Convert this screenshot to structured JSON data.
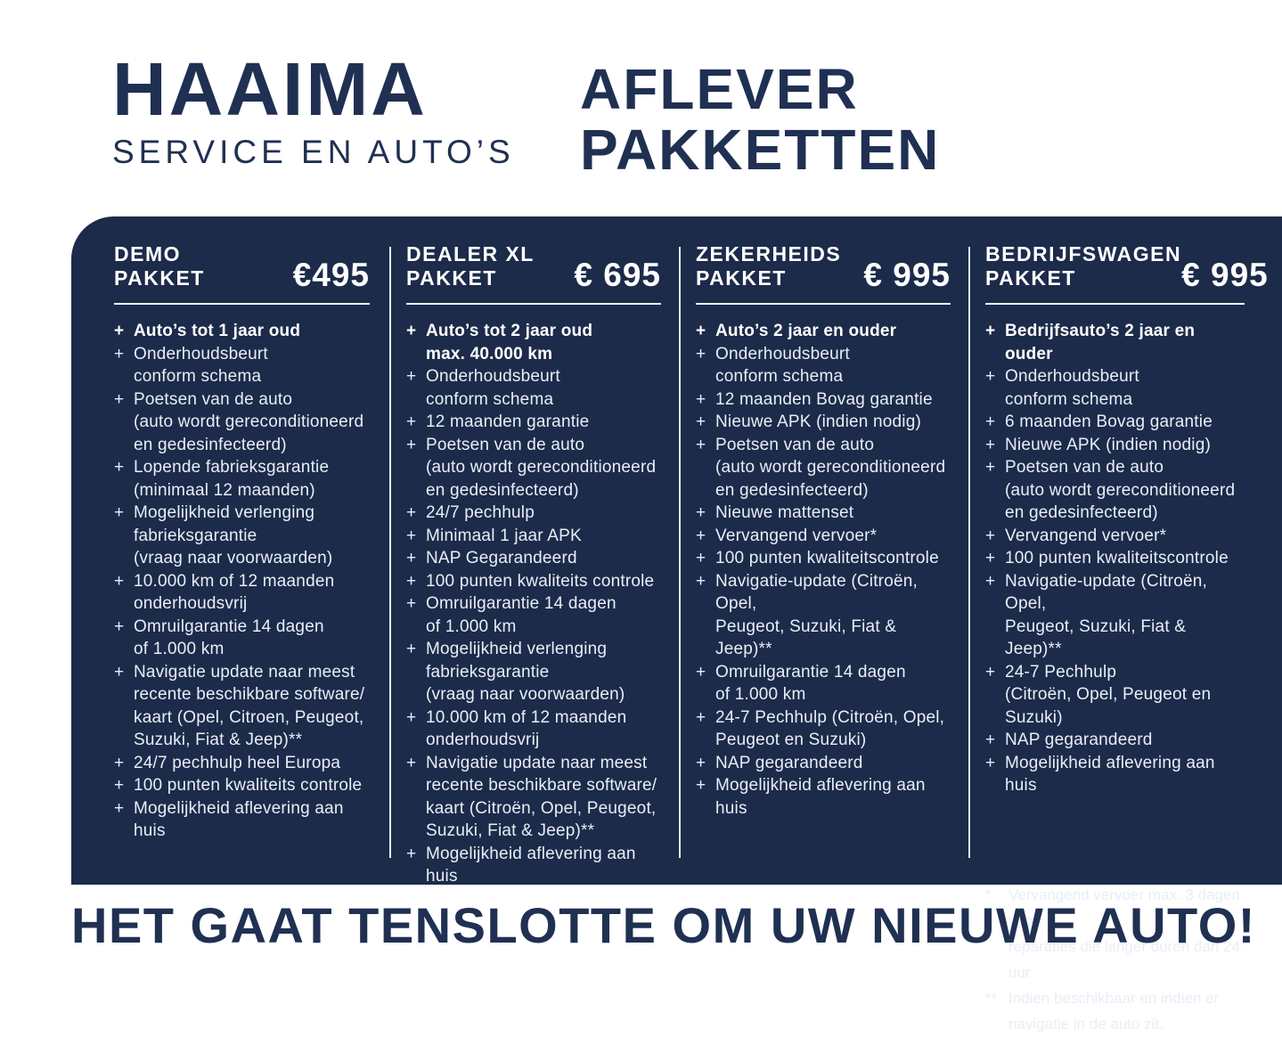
{
  "header": {
    "brand_name": "HAAIMA",
    "brand_subtitle": "SERVICE EN AUTO’S",
    "title_line1": "AFLEVER",
    "title_line2": "PAKKETTEN"
  },
  "colors": {
    "panel_navy": "#1c2b4a",
    "text_navy": "#203052",
    "text_light": "#e9eef6",
    "white": "#ffffff"
  },
  "packages": [
    {
      "title_line1": "DEMO",
      "title_line2": "PAKKET",
      "price": "€495",
      "items": [
        {
          "bold": true,
          "lines": [
            "Auto’s tot 1 jaar oud"
          ]
        },
        {
          "bold": false,
          "lines": [
            "Onderhoudsbeurt",
            "conform schema"
          ]
        },
        {
          "bold": false,
          "lines": [
            "Poetsen van de auto",
            "(auto wordt gereconditioneerd",
            "en gedesinfecteerd)"
          ]
        },
        {
          "bold": false,
          "lines": [
            "Lopende fabrieksgarantie",
            "(minimaal 12 maanden)"
          ]
        },
        {
          "bold": false,
          "lines": [
            "Mogelijkheid verlenging",
            "fabrieksgarantie",
            "(vraag naar voorwaarden)"
          ]
        },
        {
          "bold": false,
          "lines": [
            "10.000 km of 12 maanden",
            "onderhoudsvrij"
          ]
        },
        {
          "bold": false,
          "lines": [
            "Omruilgarantie 14 dagen",
            "of 1.000 km"
          ]
        },
        {
          "bold": false,
          "lines": [
            "Navigatie update naar meest",
            "recente beschikbare software/",
            "kaart (Opel, Citroen,  Peugeot,",
            "Suzuki, Fiat & Jeep)**"
          ]
        },
        {
          "bold": false,
          "lines": [
            "24/7 pechhulp heel Europa"
          ]
        },
        {
          "bold": false,
          "lines": [
            "100 punten kwaliteits controle"
          ]
        },
        {
          "bold": false,
          "lines": [
            "Mogelijkheid aflevering aan huis"
          ]
        }
      ]
    },
    {
      "title_line1": "DEALER XL",
      "title_line2": "PAKKET",
      "price": "€ 695",
      "items": [
        {
          "bold": true,
          "lines": [
            "Auto’s tot 2 jaar oud",
            "max. 40.000 km"
          ]
        },
        {
          "bold": false,
          "lines": [
            "Onderhoudsbeurt",
            "conform schema"
          ]
        },
        {
          "bold": false,
          "lines": [
            "12 maanden garantie"
          ]
        },
        {
          "bold": false,
          "lines": [
            "Poetsen van de auto",
            "(auto wordt gereconditioneerd",
            "en gedesinfecteerd)"
          ]
        },
        {
          "bold": false,
          "lines": [
            "24/7 pechhulp"
          ]
        },
        {
          "bold": false,
          "lines": [
            "Minimaal 1 jaar APK"
          ]
        },
        {
          "bold": false,
          "lines": [
            "NAP Gegarandeerd"
          ]
        },
        {
          "bold": false,
          "lines": [
            "100 punten kwaliteits controle"
          ]
        },
        {
          "bold": false,
          "lines": [
            "Omruilgarantie 14 dagen",
            "of 1.000 km"
          ]
        },
        {
          "bold": false,
          "lines": [
            "Mogelijkheid verlenging",
            "fabrieksgarantie",
            "(vraag naar voorwaarden)"
          ]
        },
        {
          "bold": false,
          "lines": [
            "10.000 km of 12 maanden",
            "onderhoudsvrij"
          ]
        },
        {
          "bold": false,
          "lines": [
            "Navigatie update naar meest",
            "recente beschikbare software/",
            "kaart (Citroën, Opel, Peugeot,",
            "Suzuki, Fiat & Jeep)**"
          ]
        },
        {
          "bold": false,
          "lines": [
            "Mogelijkheid aflevering aan huis"
          ]
        }
      ]
    },
    {
      "title_line1": "ZEKERHEIDS",
      "title_line2": "PAKKET",
      "price": "€ 995",
      "items": [
        {
          "bold": true,
          "lines": [
            "Auto’s 2 jaar en ouder"
          ]
        },
        {
          "bold": false,
          "lines": [
            "Onderhoudsbeurt",
            "conform schema"
          ]
        },
        {
          "bold": false,
          "lines": [
            "12 maanden Bovag garantie"
          ]
        },
        {
          "bold": false,
          "lines": [
            "Nieuwe APK (indien nodig)"
          ]
        },
        {
          "bold": false,
          "lines": [
            "Poetsen van de auto",
            "(auto wordt gereconditioneerd",
            "en gedesinfecteerd)"
          ]
        },
        {
          "bold": false,
          "lines": [
            "Nieuwe mattenset"
          ]
        },
        {
          "bold": false,
          "lines": [
            "Vervangend vervoer*"
          ]
        },
        {
          "bold": false,
          "lines": [
            "100 punten kwaliteitscontrole"
          ]
        },
        {
          "bold": false,
          "lines": [
            "Navigatie-update (Citroën, Opel,",
            "Peugeot, Suzuki, Fiat & Jeep)**"
          ]
        },
        {
          "bold": false,
          "lines": [
            "Omruilgarantie 14 dagen",
            "of 1.000 km"
          ]
        },
        {
          "bold": false,
          "lines": [
            "24-7 Pechhulp (Citroën, Opel,",
            "Peugeot en Suzuki)"
          ]
        },
        {
          "bold": false,
          "lines": [
            "NAP gegarandeerd"
          ]
        },
        {
          "bold": false,
          "lines": [
            "Mogelijkheid aflevering aan huis"
          ]
        }
      ]
    },
    {
      "title_line1": "BEDRIJFSWAGEN",
      "title_line2": "PAKKET",
      "price": "€ 995",
      "items": [
        {
          "bold": true,
          "lines": [
            "Bedrijfsauto’s 2 jaar en ouder"
          ]
        },
        {
          "bold": false,
          "lines": [
            "Onderhoudsbeurt",
            "conform schema"
          ]
        },
        {
          "bold": false,
          "lines": [
            "6 maanden Bovag garantie"
          ]
        },
        {
          "bold": false,
          "lines": [
            "Nieuwe APK (indien nodig)"
          ]
        },
        {
          "bold": false,
          "lines": [
            "Poetsen van de auto",
            "(auto wordt gereconditioneerd",
            "en gedesinfecteerd)"
          ]
        },
        {
          "bold": false,
          "lines": [
            "Vervangend vervoer*"
          ]
        },
        {
          "bold": false,
          "lines": [
            "100 punten kwaliteitscontrole"
          ]
        },
        {
          "bold": false,
          "lines": [
            "Navigatie-update (Citroën, Opel,",
            "Peugeot, Suzuki, Fiat & Jeep)**"
          ]
        },
        {
          "bold": false,
          "lines": [
            "24-7 Pechhulp",
            "(Citroën, Opel, Peugeot en Suzuki)"
          ]
        },
        {
          "bold": false,
          "lines": [
            "NAP gegarandeerd"
          ]
        },
        {
          "bold": false,
          "lines": [
            "Mogelijkheid aflevering aan huis"
          ]
        }
      ]
    }
  ],
  "footnotes": [
    {
      "marker": "*",
      "lines": [
        "Vervangend vervoer max. 3 dagen voor",
        "reparaties die langer duren dan 24 uur"
      ]
    },
    {
      "marker": "**",
      "lines": [
        "Indien beschikbaar en indien er",
        "navigatie in de auto zit."
      ]
    }
  ],
  "tagline": "HET GAAT TENSLOTTE OM UW NIEUWE AUTO!"
}
